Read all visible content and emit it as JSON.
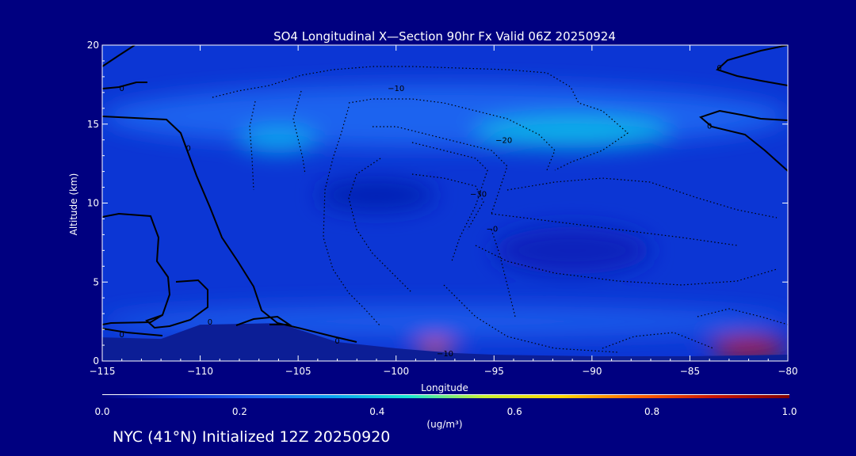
{
  "chart_data": {
    "type": "heatmap",
    "title": "SO4 Longitudinal X—Section 90hr  Fx Valid 06Z 20250924",
    "xlabel": "Longitude",
    "ylabel": "Altitude (km)",
    "xlim": [
      -115,
      -80
    ],
    "ylim": [
      0,
      20
    ],
    "x_ticks": [
      -115,
      -110,
      -105,
      -100,
      -95,
      -90,
      -85,
      -80
    ],
    "x_tick_labels": [
      "−115",
      "−110",
      "−105",
      "−100",
      "−95",
      "−90",
      "−85",
      "−80"
    ],
    "y_ticks": [
      0,
      5,
      10,
      15,
      20
    ],
    "y_tick_labels": [
      "0",
      "5",
      "10",
      "15",
      "20"
    ],
    "colorbar": {
      "min": 0.0,
      "max": 1.0,
      "ticks": [
        0.0,
        0.2,
        0.4,
        0.6,
        0.8,
        1.0
      ],
      "tick_labels": [
        "0.0",
        "0.2",
        "0.4",
        "0.6",
        "0.8",
        "1.0"
      ],
      "units": "(ug/m³)",
      "colors": [
        "#000080",
        "#0a32d2",
        "#1e64f0",
        "#0aa0f0",
        "#14e6d2",
        "#c8f032",
        "#ffd700",
        "#ff6400",
        "#c81400",
        "#800000"
      ]
    },
    "regions": [
      {
        "lon": [
          -115,
          -80
        ],
        "alt": [
          0,
          20
        ],
        "value": 0.12
      },
      {
        "lon": [
          -115,
          -80
        ],
        "alt": [
          13.5,
          17.5
        ],
        "value": 0.22
      },
      {
        "lon": [
          -108,
          -104
        ],
        "alt": [
          13.2,
          14.8
        ],
        "value": 0.34
      },
      {
        "lon": [
          -96,
          -86
        ],
        "alt": [
          13.5,
          15.5
        ],
        "value": 0.36
      },
      {
        "lon": [
          -104,
          -98
        ],
        "alt": [
          9.5,
          11.5
        ],
        "value": 0.07
      },
      {
        "lon": [
          -95,
          -87
        ],
        "alt": [
          5.5,
          8.5
        ],
        "value": 0.08
      },
      {
        "lon": [
          -115,
          -80
        ],
        "alt": [
          1.5,
          3.5
        ],
        "value": 0.2
      },
      {
        "lon": [
          -99,
          -97
        ],
        "alt": [
          0.4,
          1.2
        ],
        "value": 0.8
      },
      {
        "lon": [
          -84,
          -80
        ],
        "alt": [
          0.3,
          1.5
        ],
        "value": 0.9
      }
    ],
    "terrain_altitude_km": [
      [
        -115,
        1.5
      ],
      [
        -112,
        1.4
      ],
      [
        -110,
        2.3
      ],
      [
        -106,
        2.4
      ],
      [
        -103,
        1.2
      ],
      [
        -100,
        0.8
      ],
      [
        -97,
        0.5
      ],
      [
        -95,
        0.4
      ],
      [
        -90,
        0.3
      ],
      [
        -85,
        0.3
      ],
      [
        -80,
        0.4
      ]
    ],
    "contour_labels": [
      {
        "text": "0",
        "lon": -114,
        "alt": 17.3
      },
      {
        "text": "0",
        "lon": -110.6,
        "alt": 13.5
      },
      {
        "text": "0",
        "lon": -114,
        "alt": 1.7
      },
      {
        "text": "0",
        "lon": -109.5,
        "alt": 2.5
      },
      {
        "text": "0",
        "lon": -103,
        "alt": 1.3
      },
      {
        "text": "0",
        "lon": -83.5,
        "alt": 18.6
      },
      {
        "text": "0",
        "lon": -84,
        "alt": 14.9
      },
      {
        "text": "−10",
        "lon": -100,
        "alt": 17.3
      },
      {
        "text": "−20",
        "lon": -94.5,
        "alt": 14
      },
      {
        "text": "−30",
        "lon": -95.8,
        "alt": 10.6
      },
      {
        "text": "−0",
        "lon": -95.1,
        "alt": 8.4
      },
      {
        "text": "−10",
        "lon": -97.5,
        "alt": 0.5
      }
    ],
    "grid": false
  },
  "footer": "NYC (41°N) Initialized 12Z 20250920"
}
